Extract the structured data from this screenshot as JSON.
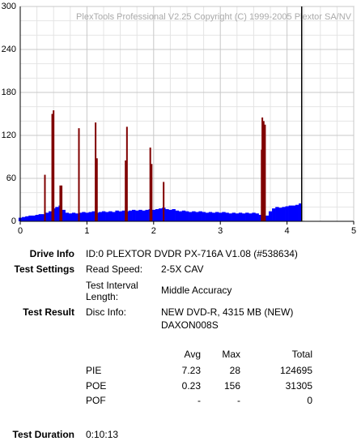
{
  "chart_data": {
    "type": "bar",
    "watermark": "PlexTools Professional V2.25 Copyright (C) 1999-2005 Plextor SA/NV",
    "xlim": [
      0,
      5
    ],
    "xticks": [
      0,
      1,
      2,
      3,
      4,
      5
    ],
    "ylim": [
      0,
      300
    ],
    "yticks": [
      0,
      60,
      120,
      180,
      240,
      300
    ],
    "grid": true,
    "end_marker": 4.22,
    "series": [
      {
        "name": "PIE",
        "color": "#0000ff",
        "style": "bars",
        "x": [
          0,
          0.05,
          0.1,
          0.15,
          0.2,
          0.25,
          0.3,
          0.35,
          0.4,
          0.45,
          0.5,
          0.55,
          0.6,
          0.65,
          0.7,
          0.75,
          0.8,
          0.85,
          0.9,
          0.95,
          1,
          1.05,
          1.1,
          1.15,
          1.2,
          1.25,
          1.3,
          1.35,
          1.4,
          1.45,
          1.5,
          1.55,
          1.6,
          1.65,
          1.7,
          1.75,
          1.8,
          1.85,
          1.9,
          1.95,
          2,
          2.05,
          2.1,
          2.15,
          2.2,
          2.25,
          2.3,
          2.35,
          2.4,
          2.45,
          2.5,
          2.55,
          2.6,
          2.65,
          2.7,
          2.75,
          2.8,
          2.85,
          2.9,
          2.95,
          3,
          3.05,
          3.1,
          3.15,
          3.2,
          3.25,
          3.3,
          3.35,
          3.4,
          3.45,
          3.5,
          3.55,
          3.6,
          3.65,
          3.7,
          3.75,
          3.8,
          3.85,
          3.9,
          3.95,
          4,
          4.05,
          4.1,
          4.15,
          4.2
        ],
        "values": [
          5,
          6,
          7,
          8,
          8,
          9,
          10,
          10,
          12,
          14,
          18,
          20,
          22,
          16,
          12,
          11,
          12,
          11,
          12,
          13,
          12,
          13,
          14,
          12,
          13,
          14,
          13,
          14,
          13,
          15,
          14,
          15,
          14,
          15,
          16,
          15,
          16,
          15,
          16,
          17,
          16,
          17,
          18,
          19,
          17,
          16,
          17,
          15,
          14,
          15,
          14,
          13,
          14,
          13,
          14,
          13,
          12,
          13,
          12,
          13,
          12,
          13,
          12,
          11,
          12,
          11,
          12,
          11,
          12,
          11,
          12,
          11,
          9,
          6,
          8,
          14,
          18,
          20,
          19,
          20,
          21,
          22,
          22,
          23,
          25
        ]
      },
      {
        "name": "POE",
        "color": "#800000",
        "style": "spikes",
        "x": [
          0.37,
          0.48,
          0.5,
          0.6,
          0.62,
          0.88,
          1.13,
          1.15,
          1.58,
          1.6,
          1.95,
          1.97,
          2.15,
          3.62,
          3.63,
          3.65,
          3.67
        ],
        "values": [
          65,
          150,
          155,
          50,
          50,
          130,
          138,
          88,
          85,
          132,
          103,
          80,
          55,
          100,
          145,
          140,
          135
        ]
      }
    ]
  },
  "info": {
    "drive_info": {
      "label": "Drive Info",
      "value": "ID:0 PLEXTOR DVDR PX-716A V1.08 (#538634)"
    },
    "test_settings": {
      "label": "Test Settings",
      "rows": [
        [
          "Read Speed:",
          "2-5X CAV"
        ],
        [
          "Test Interval Length:",
          "Middle Accuracy"
        ]
      ]
    },
    "test_result": {
      "label": "Test Result",
      "key": "Disc Info:",
      "lines": [
        "NEW DVD-R, 4315 MB (NEW)",
        "DAXON008S"
      ]
    },
    "stats": {
      "header": [
        "Avg",
        "Max",
        "Total"
      ],
      "rows": [
        [
          "PIE",
          7.23,
          28,
          124695
        ],
        [
          "POE",
          0.23,
          156,
          31305
        ],
        [
          "POF",
          "-",
          "-",
          0
        ]
      ]
    },
    "test_duration": {
      "label": "Test Duration",
      "value": "0:10:13"
    }
  }
}
